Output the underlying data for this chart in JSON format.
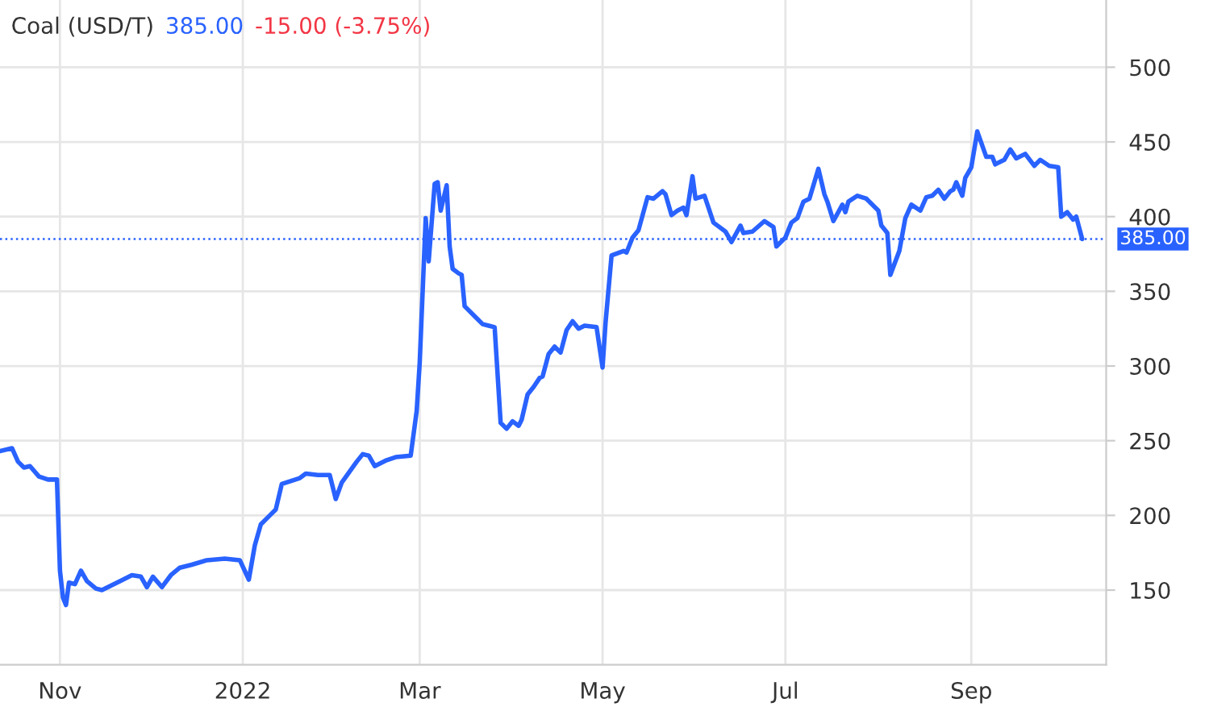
{
  "chart_data": {
    "type": "line",
    "title": "Coal (USD/T)",
    "annotations": [
      "385.00",
      "-15.00 (-3.75%)"
    ],
    "x": [
      "2021-10-12",
      "2021-10-16",
      "2021-10-18",
      "2021-10-20",
      "2021-10-22",
      "2021-10-25",
      "2021-10-28",
      "2021-10-31",
      "2021-11-01",
      "2021-11-02",
      "2021-11-03",
      "2021-11-04",
      "2021-11-06",
      "2021-11-08",
      "2021-11-10",
      "2021-11-13",
      "2021-11-15",
      "2021-11-18",
      "2021-11-21",
      "2021-11-25",
      "2021-11-28",
      "2021-11-30",
      "2021-12-02",
      "2021-12-05",
      "2021-12-08",
      "2021-12-11",
      "2021-12-15",
      "2021-12-20",
      "2021-12-26",
      "2021-12-31",
      "2022-01-03",
      "2022-01-05",
      "2022-01-07",
      "2022-01-10",
      "2022-01-12",
      "2022-01-14",
      "2022-01-20",
      "2022-01-22",
      "2022-01-26",
      "2022-01-30",
      "2022-02-01",
      "2022-02-03",
      "2022-02-08",
      "2022-02-10",
      "2022-02-12",
      "2022-02-14",
      "2022-02-18",
      "2022-02-21",
      "2022-02-26",
      "2022-02-28",
      "2022-03-01",
      "2022-03-03",
      "2022-03-04",
      "2022-03-06",
      "2022-03-07",
      "2022-03-08",
      "2022-03-10",
      "2022-03-11",
      "2022-03-12",
      "2022-03-14",
      "2022-03-15",
      "2022-03-16",
      "2022-03-20",
      "2022-03-22",
      "2022-03-24",
      "2022-03-26",
      "2022-03-28",
      "2022-03-30",
      "2022-04-01",
      "2022-04-03",
      "2022-04-04",
      "2022-04-06",
      "2022-04-08",
      "2022-04-10",
      "2022-04-11",
      "2022-04-13",
      "2022-04-15",
      "2022-04-17",
      "2022-04-19",
      "2022-04-21",
      "2022-04-23",
      "2022-04-25",
      "2022-04-29",
      "2022-05-01",
      "2022-05-02",
      "2022-05-04",
      "2022-05-08",
      "2022-05-09",
      "2022-05-11",
      "2022-05-13",
      "2022-05-16",
      "2022-05-18",
      "2022-05-21",
      "2022-05-22",
      "2022-05-24",
      "2022-05-26",
      "2022-05-28",
      "2022-05-29",
      "2022-05-31",
      "2022-06-01",
      "2022-06-04",
      "2022-06-07",
      "2022-06-11",
      "2022-06-13",
      "2022-06-16",
      "2022-06-17",
      "2022-06-20",
      "2022-06-24",
      "2022-06-27",
      "2022-06-28",
      "2022-07-01",
      "2022-07-03",
      "2022-07-05",
      "2022-07-07",
      "2022-07-09",
      "2022-07-12",
      "2022-07-14",
      "2022-07-15",
      "2022-07-17",
      "2022-07-20",
      "2022-07-21",
      "2022-07-22",
      "2022-07-25",
      "2022-07-28",
      "2022-08-01",
      "2022-08-02",
      "2022-08-04",
      "2022-08-05",
      "2022-08-08",
      "2022-08-10",
      "2022-08-12",
      "2022-08-15",
      "2022-08-17",
      "2022-08-19",
      "2022-08-21",
      "2022-08-23",
      "2022-08-25",
      "2022-08-26",
      "2022-08-27",
      "2022-08-29",
      "2022-08-30",
      "2022-09-01",
      "2022-09-03",
      "2022-09-06",
      "2022-09-08",
      "2022-09-09",
      "2022-09-12",
      "2022-09-14",
      "2022-09-16",
      "2022-09-19",
      "2022-09-22",
      "2022-09-24",
      "2022-09-27",
      "2022-09-30",
      "2022-10-01",
      "2022-10-03",
      "2022-10-05",
      "2022-10-06",
      "2022-10-08"
    ],
    "series": [
      {
        "color": "#2962ff",
        "values": [
          243,
          245,
          236,
          232,
          233,
          226,
          224,
          224,
          163,
          145,
          140,
          155,
          154,
          163,
          156,
          151,
          150,
          153,
          156,
          160,
          159,
          152,
          159,
          152,
          160,
          165,
          167,
          170,
          171,
          170,
          157,
          180,
          194,
          200,
          204,
          221,
          225,
          228,
          227,
          227,
          211,
          222,
          236,
          241,
          240,
          233,
          237,
          239,
          240,
          270,
          302,
          399,
          370,
          422,
          423,
          404,
          421,
          380,
          365,
          362,
          361,
          340,
          332,
          328,
          327,
          326,
          262,
          258,
          263,
          260,
          264,
          281,
          286,
          292,
          293,
          308,
          313,
          309,
          324,
          330,
          325,
          327,
          326,
          299,
          329,
          374,
          377,
          376,
          386,
          391,
          413,
          412,
          417,
          415,
          401,
          404,
          406,
          401,
          427,
          412,
          414,
          396,
          390,
          383,
          394,
          389,
          390,
          397,
          393,
          380,
          386,
          396,
          399,
          410,
          412,
          432,
          415,
          410,
          397,
          408,
          403,
          410,
          414,
          412,
          404,
          394,
          389,
          361,
          377,
          399,
          408,
          404,
          413,
          414,
          418,
          412,
          417,
          418,
          423,
          414,
          426,
          433,
          457,
          440,
          440,
          435,
          438,
          445,
          439,
          442,
          434,
          438,
          434,
          433,
          400,
          403,
          398,
          400,
          385
        ]
      }
    ],
    "xlim": [
      "2021-10-12",
      "2022-10-16"
    ],
    "xticks": [
      {
        "value": "2021-11-01",
        "label": "Nov"
      },
      {
        "value": "2022-01-01",
        "label": "2022"
      },
      {
        "value": "2022-03-01",
        "label": "Mar"
      },
      {
        "value": "2022-05-01",
        "label": "May"
      },
      {
        "value": "2022-07-01",
        "label": "Jul"
      },
      {
        "value": "2022-09-01",
        "label": "Sep"
      }
    ],
    "ylim": [
      100,
      545
    ],
    "yticks": [
      150,
      200,
      250,
      300,
      350,
      400,
      450,
      500
    ],
    "ref_lines": [
      {
        "axis": "y",
        "value": 385,
        "label": "385.00",
        "color": "#2962ff",
        "line_style": "dotted"
      }
    ],
    "grid": true,
    "line_style": "solid",
    "marker": "none"
  }
}
